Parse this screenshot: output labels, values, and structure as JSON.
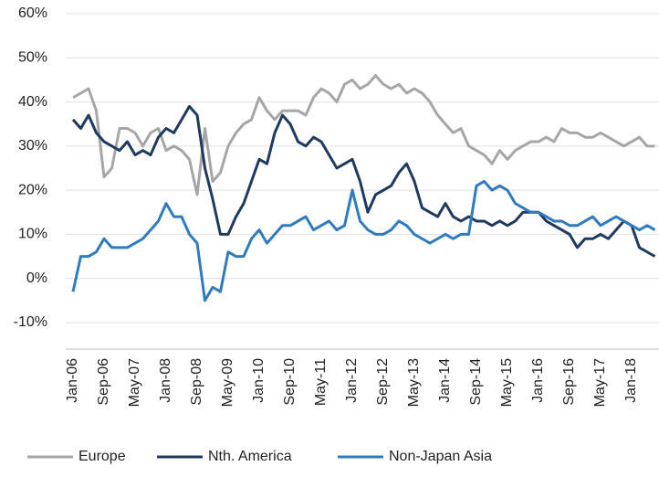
{
  "chart_data": {
    "type": "line",
    "categories": [
      "Jan-06",
      null,
      null,
      null,
      "Sep-06",
      null,
      null,
      null,
      "May-07",
      null,
      null,
      null,
      "Jan-08",
      null,
      null,
      null,
      "Sep-08",
      null,
      null,
      null,
      "May-09",
      null,
      null,
      null,
      "Jan-10",
      null,
      null,
      null,
      "Sep-10",
      null,
      null,
      null,
      "May-11",
      null,
      null,
      null,
      "Jan-12",
      null,
      null,
      null,
      "Sep-12",
      null,
      null,
      null,
      "May-13",
      null,
      null,
      null,
      "Jan-14",
      null,
      null,
      null,
      "Sep-14",
      null,
      null,
      null,
      "May-15",
      null,
      null,
      null,
      "Jan-16",
      null,
      null,
      null,
      "Sep-16",
      null,
      null,
      null,
      "May-17",
      null,
      null,
      null,
      "Jan-18",
      null,
      null,
      null
    ],
    "series": [
      {
        "name": "Europe",
        "color": "#a6a6a6",
        "values": [
          41,
          42,
          43,
          38,
          23,
          25,
          34,
          34,
          33,
          30,
          33,
          34,
          29,
          30,
          29,
          27,
          19,
          34,
          22,
          24,
          30,
          33,
          35,
          36,
          41,
          38,
          36,
          38,
          38,
          38,
          37,
          41,
          43,
          42,
          40,
          44,
          45,
          43,
          44,
          46,
          44,
          43,
          44,
          42,
          43,
          42,
          40,
          37,
          35,
          33,
          34,
          30,
          29,
          28,
          26,
          29,
          27,
          29,
          30,
          31,
          31,
          32,
          31,
          34,
          33,
          33,
          32,
          32,
          33,
          32,
          31,
          30,
          31,
          32,
          30,
          30
        ]
      },
      {
        "name": "Nth. America",
        "color": "#1f3a5f",
        "values": [
          36,
          34,
          37,
          33,
          31,
          30,
          29,
          31,
          28,
          29,
          28,
          32,
          34,
          33,
          36,
          39,
          37,
          25,
          18,
          10,
          10,
          14,
          17,
          22,
          27,
          26,
          33,
          37,
          35,
          31,
          30,
          32,
          31,
          28,
          25,
          26,
          27,
          22,
          15,
          19,
          20,
          21,
          24,
          26,
          22,
          16,
          15,
          14,
          17,
          14,
          13,
          14,
          13,
          13,
          12,
          13,
          12,
          13,
          15,
          15,
          15,
          13,
          12,
          11,
          10,
          7,
          9,
          9,
          10,
          9,
          11,
          13,
          12,
          7,
          6,
          5
        ]
      },
      {
        "name": "Non-Japan Asia",
        "color": "#2f7bbf",
        "values": [
          -3,
          5,
          5,
          6,
          9,
          7,
          7,
          7,
          8,
          9,
          11,
          13,
          17,
          14,
          14,
          10,
          8,
          -5,
          -2,
          -3,
          6,
          5,
          5,
          9,
          11,
          8,
          10,
          12,
          12,
          13,
          14,
          11,
          12,
          13,
          11,
          12,
          20,
          13,
          11,
          10,
          10,
          11,
          13,
          12,
          10,
          9,
          8,
          9,
          10,
          9,
          10,
          10,
          21,
          22,
          20,
          21,
          20,
          17,
          16,
          15,
          15,
          14,
          13,
          13,
          12,
          12,
          13,
          14,
          12,
          13,
          14,
          13,
          12,
          11,
          12,
          11
        ]
      }
    ],
    "ylim": [
      -10,
      60
    ],
    "yticks": [
      {
        "value": -10,
        "label": "-10%"
      },
      {
        "value": 0,
        "label": "0%"
      },
      {
        "value": 10,
        "label": "10%"
      },
      {
        "value": 20,
        "label": "20%"
      },
      {
        "value": 30,
        "label": "30%"
      },
      {
        "value": 40,
        "label": "40%"
      },
      {
        "value": 50,
        "label": "50%"
      },
      {
        "value": 60,
        "label": "60%"
      }
    ],
    "grid": true
  }
}
